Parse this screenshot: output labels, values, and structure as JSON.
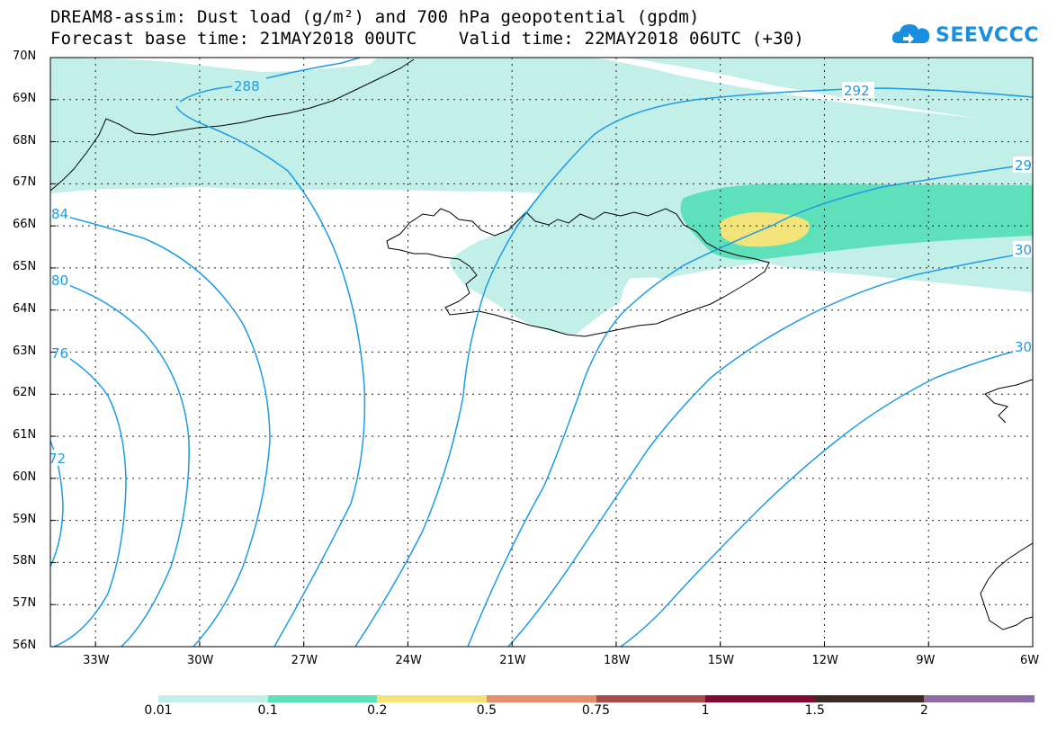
{
  "title": {
    "line1": "DREAM8-assim: Dust load (g/m²) and 700 hPa geopotential (gpdm)",
    "line2": "Forecast base time: 21MAY2018 00UTC    Valid time: 22MAY2018 06UTC (+30)"
  },
  "logo": {
    "text": "SEEVCCC",
    "icon": "cloud-icon",
    "color": "#1a8fe0"
  },
  "axes": {
    "lat_labels": [
      "70N",
      "69N",
      "68N",
      "67N",
      "66N",
      "65N",
      "64N",
      "63N",
      "62N",
      "61N",
      "60N",
      "59N",
      "58N",
      "57N",
      "56N"
    ],
    "lon_labels": [
      "33W",
      "30W",
      "27W",
      "24W",
      "21W",
      "18W",
      "15W",
      "12W",
      "9W",
      "6W"
    ],
    "lat_range": [
      56,
      70
    ],
    "lon_range": [
      -34.3,
      -6
    ]
  },
  "contours": {
    "color": "#1e9be6",
    "labels": [
      "288",
      "292",
      "29",
      "30",
      "30",
      "84",
      "80",
      "76",
      "72"
    ]
  },
  "colorbar": {
    "boundaries": [
      "0.01",
      "0.1",
      "0.2",
      "0.5",
      "0.75",
      "1",
      "1.5",
      "2"
    ],
    "colors": [
      "#c2f0e9",
      "#5ee0bb",
      "#f2e47a",
      "#e3916a",
      "#a84d45",
      "#7f0a2f",
      "#3b2a1f",
      "#8f6ba4"
    ]
  }
}
